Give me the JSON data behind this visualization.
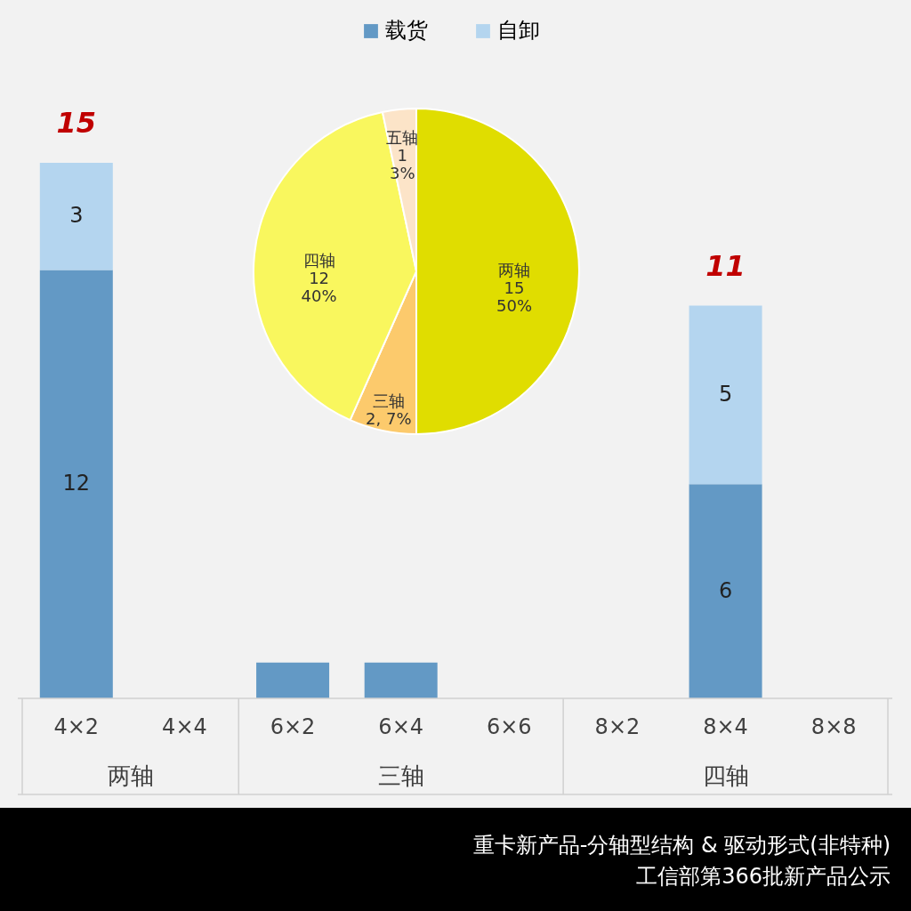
{
  "chart_data": [
    {
      "type": "bar",
      "stacked": true,
      "legend": "top",
      "categories": [
        "4×2",
        "4×4",
        "6×2",
        "6×4",
        "6×6",
        "8×2",
        "8×4",
        "8×8"
      ],
      "series": [
        {
          "name": "载货",
          "color": "#6399c5",
          "values": [
            12,
            null,
            1,
            1,
            null,
            null,
            6,
            null
          ],
          "value_labels": [
            "12",
            null,
            null,
            null,
            null,
            null,
            "6",
            null
          ]
        },
        {
          "name": "自卸",
          "color": "#b4d5ef",
          "values": [
            3,
            null,
            null,
            null,
            null,
            null,
            5,
            null
          ],
          "value_labels": [
            "3",
            null,
            null,
            null,
            null,
            null,
            "5",
            null
          ]
        }
      ],
      "totals": [
        "15",
        null,
        null,
        null,
        null,
        null,
        "11",
        null
      ],
      "annotations": [
        "两轴",
        "三轴",
        "四轴",
        "重卡新产品-分轴型结构  & 驱动形式(非特种)",
        "工信部第366批新产品公示"
      ]
    },
    {
      "type": "pie",
      "categories": [
        "两轴",
        "三轴",
        "四轴",
        "五轴"
      ],
      "values": [
        15,
        2,
        12,
        1
      ],
      "colors": [
        "#e0dd00",
        "#fcca6c",
        "#f9f75e",
        "#fce4c8"
      ],
      "value_labels": [
        "15\n50%",
        "2, 7%",
        "12\n40%",
        "1\n3%"
      ]
    }
  ]
}
